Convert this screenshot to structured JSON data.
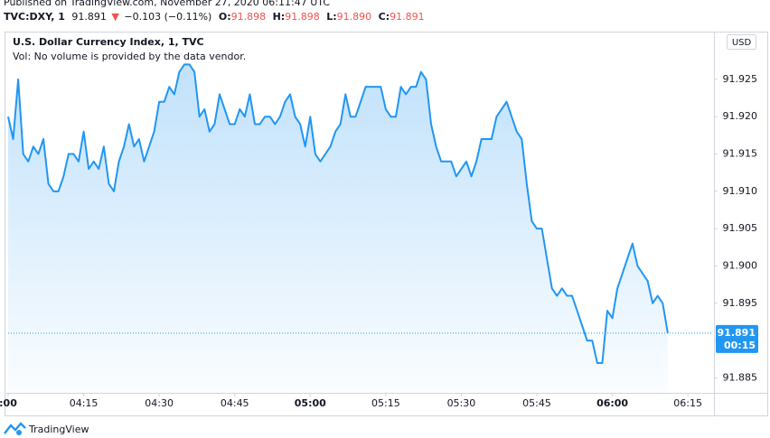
{
  "header": {
    "published": "Published on TradingView.com, November 27, 2020 06:11:47 UTC",
    "symbol": "TVC:DXY, 1",
    "price": "91.891",
    "arrow": "▼",
    "change": "−0.103 (−0.11%)",
    "ohlc": [
      {
        "label": "O:",
        "value": "91.898"
      },
      {
        "label": "H:",
        "value": "91.898"
      },
      {
        "label": "L:",
        "value": "91.890"
      },
      {
        "label": "C:",
        "value": "91.891"
      }
    ]
  },
  "chart_data": {
    "type": "area",
    "title": "U.S. Dollar Currency Index, 1, TVC",
    "subtitle": "Vol: No volume is provided by the data vendor.",
    "currency": "USD",
    "countdown": "00:15",
    "last_value": 91.891,
    "x": [
      "04:00",
      "04:01",
      "04:02",
      "04:03",
      "04:04",
      "04:05",
      "04:06",
      "04:07",
      "04:08",
      "04:09",
      "04:10",
      "04:11",
      "04:12",
      "04:13",
      "04:14",
      "04:15",
      "04:16",
      "04:17",
      "04:18",
      "04:19",
      "04:20",
      "04:21",
      "04:22",
      "04:23",
      "04:24",
      "04:25",
      "04:26",
      "04:27",
      "04:28",
      "04:29",
      "04:30",
      "04:31",
      "04:32",
      "04:33",
      "04:34",
      "04:35",
      "04:36",
      "04:37",
      "04:38",
      "04:39",
      "04:40",
      "04:41",
      "04:42",
      "04:43",
      "04:44",
      "04:45",
      "04:46",
      "04:47",
      "04:48",
      "04:49",
      "04:50",
      "04:51",
      "04:52",
      "04:53",
      "04:54",
      "04:55",
      "04:56",
      "04:57",
      "04:58",
      "04:59",
      "05:00",
      "05:01",
      "05:02",
      "05:03",
      "05:04",
      "05:05",
      "05:06",
      "05:07",
      "05:08",
      "05:09",
      "05:10",
      "05:11",
      "05:12",
      "05:13",
      "05:14",
      "05:15",
      "05:16",
      "05:17",
      "05:18",
      "05:19",
      "05:20",
      "05:21",
      "05:22",
      "05:23",
      "05:24",
      "05:25",
      "05:26",
      "05:27",
      "05:28",
      "05:29",
      "05:30",
      "05:31",
      "05:32",
      "05:33",
      "05:34",
      "05:35",
      "05:36",
      "05:37",
      "05:38",
      "05:39",
      "05:40",
      "05:41",
      "05:42",
      "05:43",
      "05:44",
      "05:45",
      "05:46",
      "05:47",
      "05:48",
      "05:49",
      "05:50",
      "05:51",
      "05:52",
      "05:53",
      "05:54",
      "05:55",
      "05:56",
      "05:57",
      "05:58",
      "05:59",
      "06:00",
      "06:01",
      "06:02",
      "06:03",
      "06:04",
      "06:05",
      "06:06",
      "06:07",
      "06:08",
      "06:09",
      "06:10",
      "06:11"
    ],
    "series": [
      {
        "name": "DXY",
        "color": "#2196f3",
        "values": [
          91.92,
          91.917,
          91.925,
          91.915,
          91.914,
          91.916,
          91.915,
          91.917,
          91.911,
          91.91,
          91.91,
          91.912,
          91.915,
          91.915,
          91.914,
          91.918,
          91.913,
          91.914,
          91.913,
          91.916,
          91.911,
          91.91,
          91.914,
          91.916,
          91.919,
          91.916,
          91.917,
          91.914,
          91.916,
          91.918,
          91.922,
          91.922,
          91.924,
          91.923,
          91.926,
          91.927,
          91.927,
          91.926,
          91.92,
          91.921,
          91.918,
          91.919,
          91.923,
          91.921,
          91.919,
          91.919,
          91.921,
          91.92,
          91.923,
          91.919,
          91.919,
          91.92,
          91.92,
          91.919,
          91.92,
          91.922,
          91.923,
          91.92,
          91.919,
          91.916,
          91.92,
          91.915,
          91.914,
          91.915,
          91.916,
          91.918,
          91.919,
          91.923,
          91.92,
          91.92,
          91.922,
          91.924,
          91.924,
          91.924,
          91.924,
          91.921,
          91.92,
          91.92,
          91.924,
          91.923,
          91.924,
          91.924,
          91.926,
          91.925,
          91.919,
          91.916,
          91.914,
          91.914,
          91.914,
          91.912,
          91.913,
          91.914,
          91.912,
          91.914,
          91.917,
          91.917,
          91.917,
          91.92,
          91.921,
          91.922,
          91.92,
          91.918,
          91.917,
          91.911,
          91.906,
          91.905,
          91.905,
          91.901,
          91.897,
          91.896,
          91.897,
          91.896,
          91.896,
          91.894,
          91.892,
          91.89,
          91.89,
          91.887,
          91.887,
          91.894,
          91.893,
          91.897,
          91.899,
          91.901,
          91.903,
          91.9,
          91.899,
          91.898,
          91.895,
          91.896,
          91.895,
          91.891
        ]
      }
    ],
    "xlim": [
      "04:00",
      "06:20"
    ],
    "xticks": [
      {
        "value": "04:00",
        "label": ":00"
      },
      "04:15",
      "04:30",
      "04:45",
      "05:00",
      "05:15",
      "05:30",
      "05:45",
      "06:00",
      "06:15"
    ],
    "ylim": [
      91.883,
      91.9314
    ],
    "yticks": [
      91.885,
      {
        "value": 91.89,
        "label": "91.890"
      },
      91.895,
      {
        "value": 91.9,
        "label": "91.900"
      },
      91.905,
      {
        "value": 91.91,
        "label": "91.910"
      },
      91.915,
      {
        "value": 91.92,
        "label": "91.920"
      },
      91.925
    ],
    "grid": false
  }
}
